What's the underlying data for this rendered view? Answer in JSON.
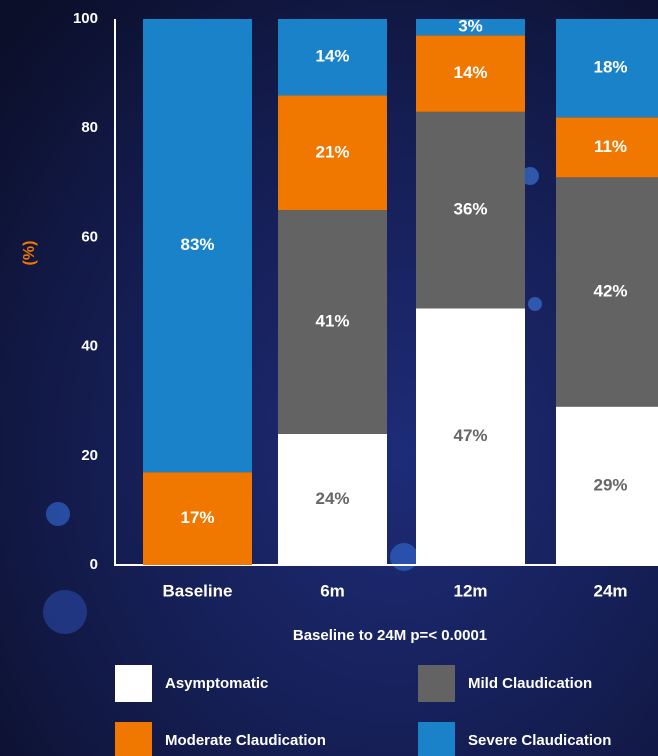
{
  "chart_data": {
    "type": "stacked_bar",
    "ylabel": "(%)",
    "subtitle": "Baseline to 24M p=< 0.0001",
    "categories": [
      "Baseline",
      "6m",
      "12m",
      "24m"
    ],
    "ylim": [
      0,
      100
    ],
    "yticks": [
      0,
      20,
      40,
      60,
      80,
      100
    ],
    "legend": "bottom",
    "series": [
      {
        "name": "Asymptomatic",
        "color": "#ffffff",
        "values": [
          0,
          24,
          47,
          29
        ],
        "value_labels": [
          null,
          "24%",
          "47%",
          "29%"
        ]
      },
      {
        "name": "Mild Claudication",
        "color": "#636363",
        "values": [
          0,
          41,
          36,
          42
        ],
        "value_labels": [
          null,
          "41%",
          "36%",
          "42%"
        ]
      },
      {
        "name": "Moderate Claudication",
        "color": "#f07800",
        "values": [
          17,
          21,
          14,
          11
        ],
        "value_labels": [
          "17%",
          "21%",
          "14%",
          "11%"
        ]
      },
      {
        "name": "Severe Claudication",
        "color": "#1a82c8",
        "values": [
          83,
          14,
          3,
          18
        ],
        "value_labels": [
          "83%",
          "14%",
          "3%",
          "18%"
        ]
      }
    ]
  }
}
